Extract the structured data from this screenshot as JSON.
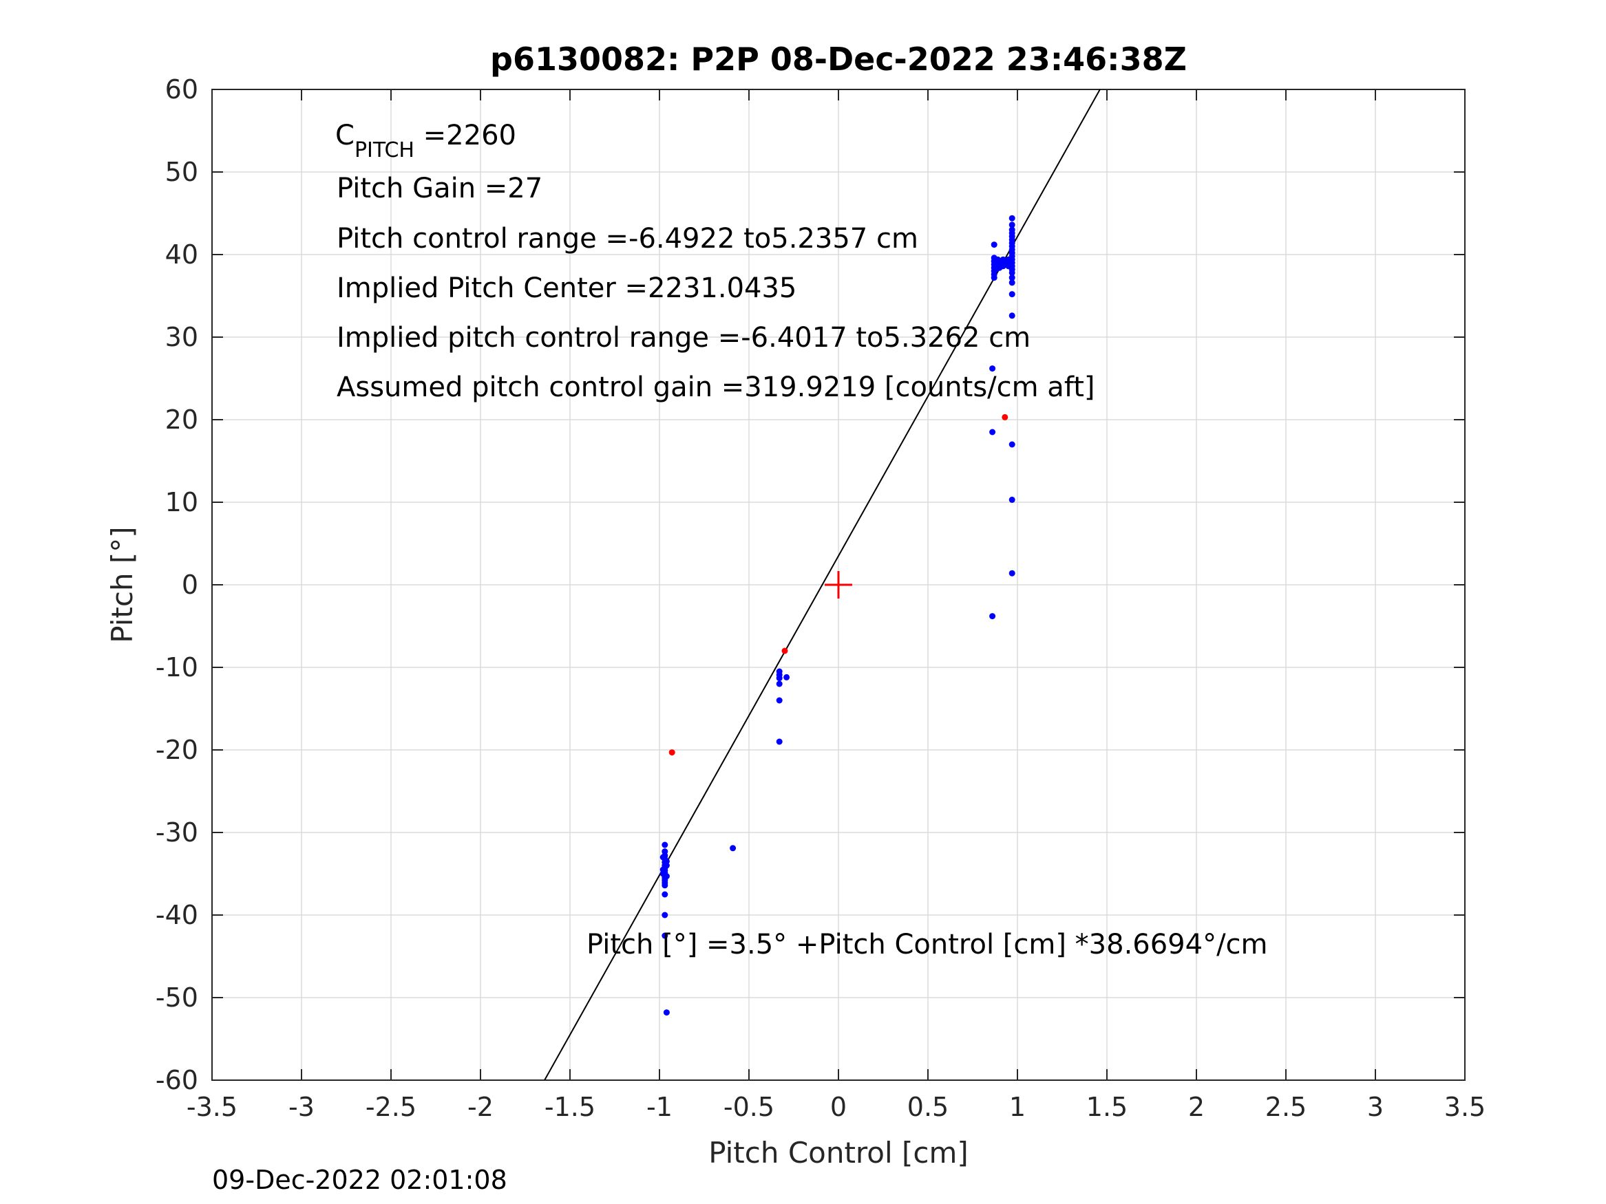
{
  "chart_data": {
    "type": "scatter",
    "title": "p6130082: P2P 08-Dec-2022 23:46:38Z",
    "xlabel": "Pitch Control [cm]",
    "ylabel": "Pitch [°]",
    "xlim": [
      -3.5,
      3.5
    ],
    "ylim": [
      -60,
      60
    ],
    "xticks": [
      -3.5,
      -3,
      -2.5,
      -2,
      -1.5,
      -1,
      -0.5,
      0,
      0.5,
      1,
      1.5,
      2,
      2.5,
      3,
      3.5
    ],
    "xtick_labels": [
      "-3.5",
      "-3",
      "-2.5",
      "-2",
      "-1.5",
      "-1",
      "-0.5",
      "0",
      "0.5",
      "1",
      "1.5",
      "2",
      "2.5",
      "3",
      "3.5"
    ],
    "yticks": [
      60,
      50,
      40,
      30,
      20,
      10,
      0,
      -10,
      -20,
      -30,
      -40,
      -50,
      -60
    ],
    "ytick_labels": [
      "60",
      "50",
      "40",
      "30",
      "20",
      "10",
      "0",
      "-10",
      "-20",
      "-30",
      "-40",
      "-50",
      "-60"
    ],
    "grid": true,
    "fit_line": {
      "intercept": 3.5,
      "slope": 38.6694,
      "color": "#000000"
    },
    "center_marker": {
      "x": 0,
      "y": 0,
      "color": "#ff0000"
    },
    "series": [
      {
        "color": "#0000ff",
        "points": [
          [
            -0.97,
            -31.5
          ],
          [
            -0.97,
            -32.3
          ],
          [
            -0.97,
            -32.8
          ],
          [
            -0.97,
            -33.2
          ],
          [
            -0.97,
            -33.6
          ],
          [
            -0.97,
            -34.0
          ],
          [
            -0.97,
            -34.3
          ],
          [
            -0.97,
            -34.6
          ],
          [
            -0.97,
            -34.9
          ],
          [
            -0.97,
            -35.2
          ],
          [
            -0.97,
            -35.5
          ],
          [
            -0.97,
            -35.8
          ],
          [
            -0.97,
            -36.1
          ],
          [
            -0.97,
            -36.4
          ],
          [
            -0.98,
            -33.0
          ],
          [
            -0.98,
            -34.5
          ],
          [
            -0.98,
            -35.0
          ],
          [
            -0.96,
            -34.0
          ],
          [
            -0.96,
            -35.3
          ],
          [
            -0.96,
            -33.5
          ],
          [
            -0.97,
            -37.5
          ],
          [
            -0.97,
            -40.0
          ],
          [
            -0.97,
            -42.5
          ],
          [
            -0.96,
            -51.8
          ],
          [
            -0.59,
            -31.9
          ],
          [
            -0.33,
            -10.5
          ],
          [
            -0.33,
            -10.9
          ],
          [
            -0.33,
            -11.3
          ],
          [
            -0.33,
            -12.0
          ],
          [
            -0.33,
            -14.0
          ],
          [
            -0.33,
            -19.0
          ],
          [
            -0.29,
            -11.2
          ],
          [
            0.87,
            37.2
          ],
          [
            0.87,
            37.6
          ],
          [
            0.87,
            38.0
          ],
          [
            0.87,
            38.4
          ],
          [
            0.87,
            38.8
          ],
          [
            0.87,
            39.2
          ],
          [
            0.87,
            39.6
          ],
          [
            0.87,
            41.2
          ],
          [
            0.88,
            38.2
          ],
          [
            0.88,
            39.0
          ],
          [
            0.89,
            38.6
          ],
          [
            0.89,
            39.4
          ],
          [
            0.9,
            38.4
          ],
          [
            0.9,
            39.2
          ],
          [
            0.91,
            38.8
          ],
          [
            0.92,
            38.6
          ],
          [
            0.92,
            39.4
          ],
          [
            0.93,
            38.8
          ],
          [
            0.94,
            39.0
          ],
          [
            0.95,
            38.6
          ],
          [
            0.95,
            39.4
          ],
          [
            0.97,
            37.8
          ],
          [
            0.97,
            38.2
          ],
          [
            0.97,
            38.6
          ],
          [
            0.97,
            39.0
          ],
          [
            0.97,
            39.4
          ],
          [
            0.97,
            39.8
          ],
          [
            0.97,
            40.2
          ],
          [
            0.97,
            40.6
          ],
          [
            0.97,
            41.0
          ],
          [
            0.97,
            41.4
          ],
          [
            0.97,
            41.8
          ],
          [
            0.97,
            42.2
          ],
          [
            0.97,
            42.6
          ],
          [
            0.97,
            43.0
          ],
          [
            0.97,
            43.6
          ],
          [
            0.97,
            44.4
          ],
          [
            0.97,
            36.6
          ],
          [
            0.97,
            37.2
          ],
          [
            0.97,
            35.2
          ],
          [
            0.97,
            32.6
          ],
          [
            0.86,
            26.2
          ],
          [
            0.86,
            18.5
          ],
          [
            0.97,
            17.0
          ],
          [
            0.97,
            10.3
          ],
          [
            0.97,
            1.4
          ],
          [
            0.86,
            -3.8
          ]
        ]
      },
      {
        "color": "#ff0000",
        "points": [
          [
            -0.93,
            -20.3
          ],
          [
            -0.3,
            -8.0
          ],
          [
            0.93,
            20.3
          ]
        ]
      }
    ]
  },
  "annotations": {
    "cpitch_letter": "C",
    "cpitch_sub": "PITCH",
    "cpitch_value": " =2260",
    "pitch_gain": "Pitch Gain =27",
    "pitch_control_range": "Pitch control range =-6.4922 to5.2357 cm",
    "implied_center": "Implied Pitch Center =2231.0435",
    "implied_range": "Implied pitch control range =-6.4017 to5.3262 cm",
    "assumed_gain": "Assumed pitch control gain =319.9219 [counts/cm aft]",
    "fit_equation": "Pitch [°] =3.5° +Pitch Control [cm] *38.6694°/cm"
  },
  "footer": {
    "timestamp": "09-Dec-2022 02:01:08"
  }
}
